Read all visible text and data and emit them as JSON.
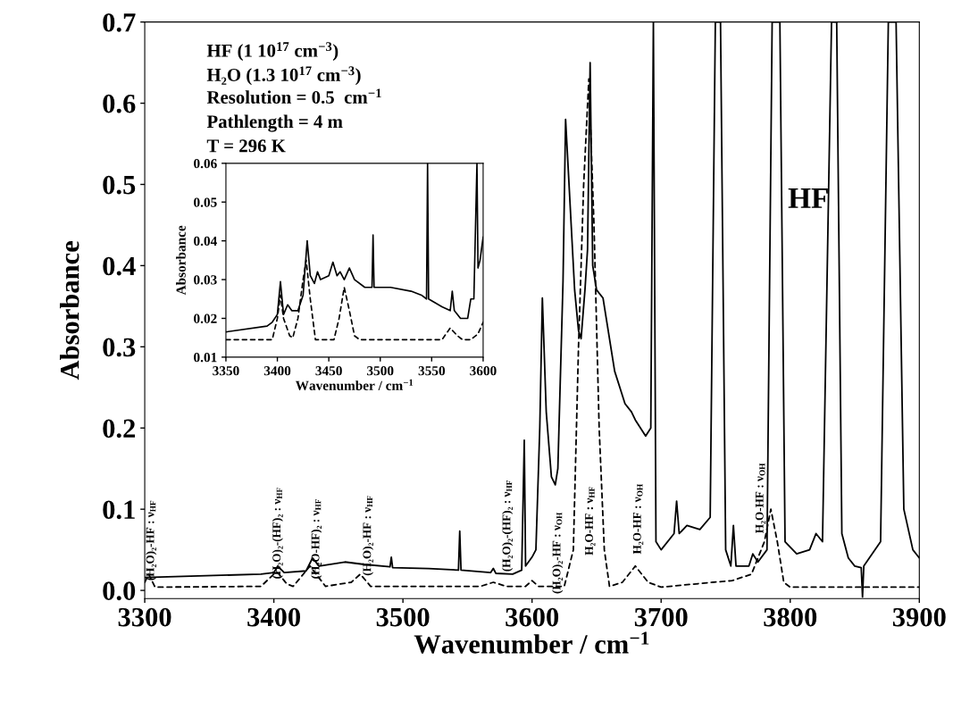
{
  "chart_data": [
    {
      "type": "line",
      "xlabel": "Wavenumber / cm$^{−1}$",
      "ylabel": "Absorbance",
      "xlim": [
        3300,
        3900
      ],
      "ylim": [
        -0.01,
        0.7
      ],
      "xticks": [
        3300,
        3400,
        3500,
        3600,
        3700,
        3800,
        3900
      ],
      "yticks": [
        {
          "value": 0,
          "label": "0.0"
        },
        0.1,
        0.2,
        0.3,
        0.4,
        0.5,
        0.6,
        0.7
      ],
      "grid": false,
      "legend": false,
      "annotations": [
        "HF (1 10$^{17}$ cm$^{−3}$)",
        "H₂O (1.3 10$^{17}$ cm$^{−3}$)",
        "Resolution = 0.5  cm$^{−1}$",
        "Pathlength = 4 m",
        "T = 296 K",
        "HF",
        "(H₂O)₂-HF : ν$_{OH}$",
        "H₂O-HF : ν$_{HF}$",
        "H₂O-HF : ν$_{OH}$",
        "H₂O-HF : ν$_{OH}$",
        {
          "text": "(H₂O)₂-HF : ν$_{HF}$",
          "x": 3305,
          "y": 0.012
        },
        {
          "text": "(H₂O)₂-(HF)₂ : ν$_{HF}$",
          "x": 3403,
          "y": 0.014
        },
        {
          "text": "(H₂O-HF)₂ : ν$_{HF}$",
          "x": 3433,
          "y": 0.014
        },
        {
          "text": "(H₂O)₂-HF : ν$_{HF}$",
          "x": 3473,
          "y": 0.018
        },
        {
          "text": "(H₂O)₂-(HF)₂ : ν$_{HF}$",
          "x": 3581,
          "y": 0.023
        }
      ],
      "series": [
        {
          "color": "#000000",
          "line_style": "solid",
          "x": [
            3300,
            3390,
            3400,
            3403,
            3408,
            3425,
            3430,
            3435,
            3455,
            3470,
            3490,
            3491,
            3492,
            3520,
            3543,
            3544,
            3545,
            3568,
            3570,
            3572,
            3585,
            3592,
            3594,
            3595,
            3600,
            3603,
            3606,
            3608,
            3611,
            3615,
            3618,
            3620,
            3624,
            3626,
            3630,
            3633,
            3636,
            3638,
            3641,
            3643,
            3645,
            3647,
            3650,
            3655,
            3658,
            3664,
            3668,
            3672,
            3677,
            3680,
            3688,
            3692,
            3694,
            3696,
            3700,
            3710,
            3712,
            3714,
            3720,
            3730,
            3738,
            3742,
            3746,
            3750,
            3754,
            3756,
            3758,
            3768,
            3771,
            3775,
            3782,
            3786,
            3792,
            3796,
            3805,
            3815,
            3820,
            3825,
            3832,
            3836,
            3840,
            3845,
            3850,
            3855,
            3856,
            3857,
            3870,
            3876,
            3882,
            3888,
            3895,
            3900
          ],
          "values": [
            0.016,
            0.02,
            0.022,
            0.03,
            0.022,
            0.024,
            0.04,
            0.03,
            0.035,
            0.032,
            0.029,
            0.041,
            0.028,
            0.027,
            0.025,
            0.073,
            0.025,
            0.022,
            0.027,
            0.021,
            0.02,
            0.025,
            0.185,
            0.03,
            0.041,
            0.05,
            0.2,
            0.36,
            0.22,
            0.14,
            0.13,
            0.15,
            0.38,
            0.58,
            0.46,
            0.37,
            0.32,
            0.31,
            0.37,
            0.42,
            0.65,
            0.4,
            0.37,
            0.36,
            0.33,
            0.27,
            0.25,
            0.23,
            0.22,
            0.21,
            0.19,
            0.2,
            0.7,
            0.06,
            0.05,
            0.07,
            0.11,
            0.07,
            0.08,
            0.075,
            0.09,
            0.7,
            0.7,
            0.05,
            0.03,
            0.08,
            0.03,
            0.03,
            0.045,
            0.035,
            0.05,
            0.7,
            0.7,
            0.06,
            0.045,
            0.05,
            0.07,
            0.06,
            0.7,
            0.7,
            0.07,
            0.04,
            0.03,
            0.028,
            -0.008,
            0.03,
            0.06,
            0.7,
            0.7,
            0.1,
            0.05,
            0.04
          ]
        },
        {
          "color": "#000000",
          "line_style": "dashed",
          "x": [
            3300,
            3303,
            3308,
            3390,
            3400,
            3403,
            3410,
            3415,
            3428,
            3440,
            3460,
            3467,
            3475,
            3560,
            3570,
            3580,
            3595,
            3600,
            3605,
            3625,
            3632,
            3636,
            3640,
            3644,
            3648,
            3652,
            3656,
            3660,
            3670,
            3680,
            3690,
            3700,
            3740,
            3755,
            3770,
            3780,
            3785,
            3790,
            3795,
            3800,
            3900
          ],
          "values": [
            0.01,
            0.02,
            0.004,
            0.005,
            0.02,
            0.022,
            0.008,
            0.005,
            0.03,
            0.005,
            0.01,
            0.02,
            0.005,
            0.005,
            0.01,
            0.005,
            0.005,
            0.012,
            0.005,
            0.005,
            0.05,
            0.3,
            0.5,
            0.63,
            0.45,
            0.2,
            0.05,
            0.005,
            0.01,
            0.03,
            0.01,
            0.004,
            0.01,
            0.012,
            0.02,
            0.06,
            0.1,
            0.06,
            0.01,
            0.004,
            0.004
          ]
        }
      ]
    },
    {
      "type": "line",
      "xlabel": "Wavenumber / cm$^{−1}$",
      "ylabel": "Absorbance",
      "xlim": [
        3350,
        3600
      ],
      "ylim": [
        0.01,
        0.06
      ],
      "xticks": [
        3350,
        3400,
        3450,
        3500,
        3550,
        3600
      ],
      "yticks": [
        0.01,
        0.02,
        0.03,
        0.04,
        0.05,
        0.06
      ],
      "grid": false,
      "legend": false,
      "series": [
        {
          "color": "#000000",
          "line_style": "solid",
          "x": [
            3350,
            3390,
            3395,
            3400,
            3403,
            3406,
            3410,
            3414,
            3420,
            3425,
            3429,
            3432,
            3436,
            3439,
            3442,
            3450,
            3454,
            3458,
            3461,
            3465,
            3470,
            3475,
            3485,
            3492,
            3493,
            3494,
            3510,
            3530,
            3540,
            3545,
            3546,
            3547,
            3560,
            3568,
            3570,
            3572,
            3578,
            3585,
            3588,
            3591,
            3594,
            3595,
            3597,
            3600
          ],
          "values": [
            0.0165,
            0.018,
            0.019,
            0.021,
            0.0295,
            0.021,
            0.0235,
            0.022,
            0.022,
            0.026,
            0.04,
            0.031,
            0.029,
            0.032,
            0.03,
            0.031,
            0.0345,
            0.031,
            0.032,
            0.03,
            0.033,
            0.03,
            0.028,
            0.028,
            0.0415,
            0.028,
            0.028,
            0.027,
            0.026,
            0.025,
            0.06,
            0.025,
            0.023,
            0.022,
            0.027,
            0.022,
            0.02,
            0.02,
            0.025,
            0.025,
            0.06,
            0.033,
            0.035,
            0.041
          ]
        },
        {
          "color": "#000000",
          "line_style": "dashed",
          "x": [
            3350,
            3395,
            3400,
            3403,
            3406,
            3412,
            3415,
            3420,
            3425,
            3428,
            3432,
            3437,
            3455,
            3460,
            3465,
            3470,
            3475,
            3480,
            3560,
            3568,
            3575,
            3580,
            3588,
            3595,
            3600
          ],
          "values": [
            0.0145,
            0.0145,
            0.02,
            0.026,
            0.02,
            0.0155,
            0.015,
            0.02,
            0.03,
            0.035,
            0.025,
            0.0145,
            0.0145,
            0.02,
            0.028,
            0.022,
            0.0155,
            0.0145,
            0.0145,
            0.0175,
            0.0155,
            0.0145,
            0.0145,
            0.016,
            0.019
          ]
        }
      ]
    }
  ]
}
